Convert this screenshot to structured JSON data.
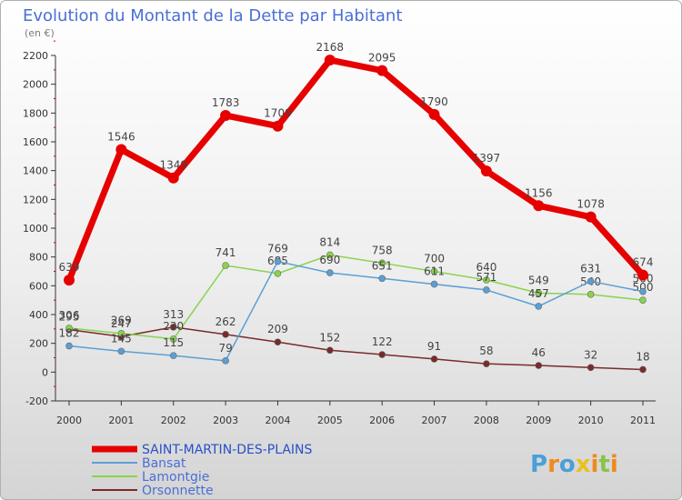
{
  "chart_data": {
    "type": "line",
    "title": "Evolution du Montant de la Dette par Habitant",
    "subtitle": "(en €)",
    "categories": [
      "2000",
      "2001",
      "2002",
      "2003",
      "2004",
      "2005",
      "2006",
      "2007",
      "2008",
      "2009",
      "2010",
      "2011"
    ],
    "ylim": [
      -200,
      2200
    ],
    "yticks": [
      -200,
      0,
      200,
      400,
      600,
      800,
      1000,
      1200,
      1400,
      1600,
      1800,
      2000,
      2200
    ],
    "grid": false,
    "legend_position": "bottom-left",
    "series": [
      {
        "name": "SAINT-MARTIN-DES-PLAINS",
        "color": "#e60000",
        "values": [
          639,
          1546,
          1349,
          1783,
          1709,
          2168,
          2095,
          1790,
          1397,
          1156,
          1078,
          674
        ]
      },
      {
        "name": "Bansat",
        "color": "#5a9fd4",
        "values": [
          182,
          145,
          115,
          79,
          769,
          690,
          651,
          611,
          571,
          457,
          631,
          560
        ]
      },
      {
        "name": "Lamontgie",
        "color": "#88d44e",
        "values": [
          306,
          269,
          230,
          741,
          685,
          814,
          758,
          700,
          640,
          549,
          540,
          500
        ]
      },
      {
        "name": "Orsonnette",
        "color": "#7a2a2a",
        "values": [
          295,
          247,
          313,
          262,
          209,
          152,
          122,
          91,
          58,
          46,
          32,
          18
        ]
      }
    ]
  },
  "brand": {
    "text": "Proxiti",
    "letters": [
      "P",
      "r",
      "o",
      "x",
      "i",
      "t",
      "i"
    ],
    "colors": [
      "#4aa0d8",
      "#f08a1c",
      "#4aa0d8",
      "#e8c21c",
      "#f08a1c",
      "#8bc34a",
      "#f08a1c"
    ]
  }
}
